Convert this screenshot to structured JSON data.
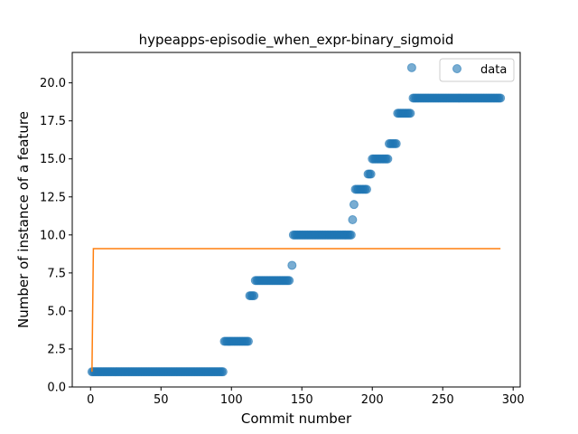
{
  "chart_data": {
    "type": "scatter",
    "title": "hypeapps-episodie_when_expr-binary_sigmoid",
    "xlabel": "Commit number",
    "ylabel": "Number of instance of a feature",
    "xlim": [
      -13,
      305
    ],
    "ylim": [
      0,
      22
    ],
    "xticks": [
      0,
      50,
      100,
      150,
      200,
      250,
      300
    ],
    "yticks": [
      0.0,
      2.5,
      5.0,
      7.5,
      10.0,
      12.5,
      15.0,
      17.5,
      20.0
    ],
    "ytick_labels": [
      "0.0",
      "2.5",
      "5.0",
      "7.5",
      "10.0",
      "12.5",
      "15.0",
      "17.5",
      "20.0"
    ],
    "grid": false,
    "legend": {
      "placement": "top-right",
      "entries": [
        "data"
      ]
    },
    "series": [
      {
        "name": "data",
        "kind": "scatter",
        "color": "#1f77b4",
        "alpha": 0.6,
        "segments": [
          {
            "x_start": 1,
            "x_end": 94,
            "y": 1
          },
          {
            "x_start": 95,
            "x_end": 112,
            "y": 3
          },
          {
            "x_start": 113,
            "x_end": 116,
            "y": 6
          },
          {
            "x_start": 117,
            "x_end": 141,
            "y": 7
          },
          {
            "x_start": 143,
            "x_end": 143,
            "y": 8
          },
          {
            "x_start": 144,
            "x_end": 185,
            "y": 10
          },
          {
            "x_start": 186,
            "x_end": 186,
            "y": 11
          },
          {
            "x_start": 187,
            "x_end": 187,
            "y": 12
          },
          {
            "x_start": 188,
            "x_end": 196,
            "y": 13
          },
          {
            "x_start": 197,
            "x_end": 199,
            "y": 14
          },
          {
            "x_start": 200,
            "x_end": 211,
            "y": 15
          },
          {
            "x_start": 212,
            "x_end": 217,
            "y": 16
          },
          {
            "x_start": 218,
            "x_end": 227,
            "y": 18
          },
          {
            "x_start": 228,
            "x_end": 228,
            "y": 21
          },
          {
            "x_start": 229,
            "x_end": 291,
            "y": 19
          }
        ]
      },
      {
        "name": "",
        "kind": "line",
        "color": "#ff7f0e",
        "x": [
          1,
          2,
          291
        ],
        "y": [
          1,
          9.1,
          9.1
        ]
      }
    ]
  }
}
